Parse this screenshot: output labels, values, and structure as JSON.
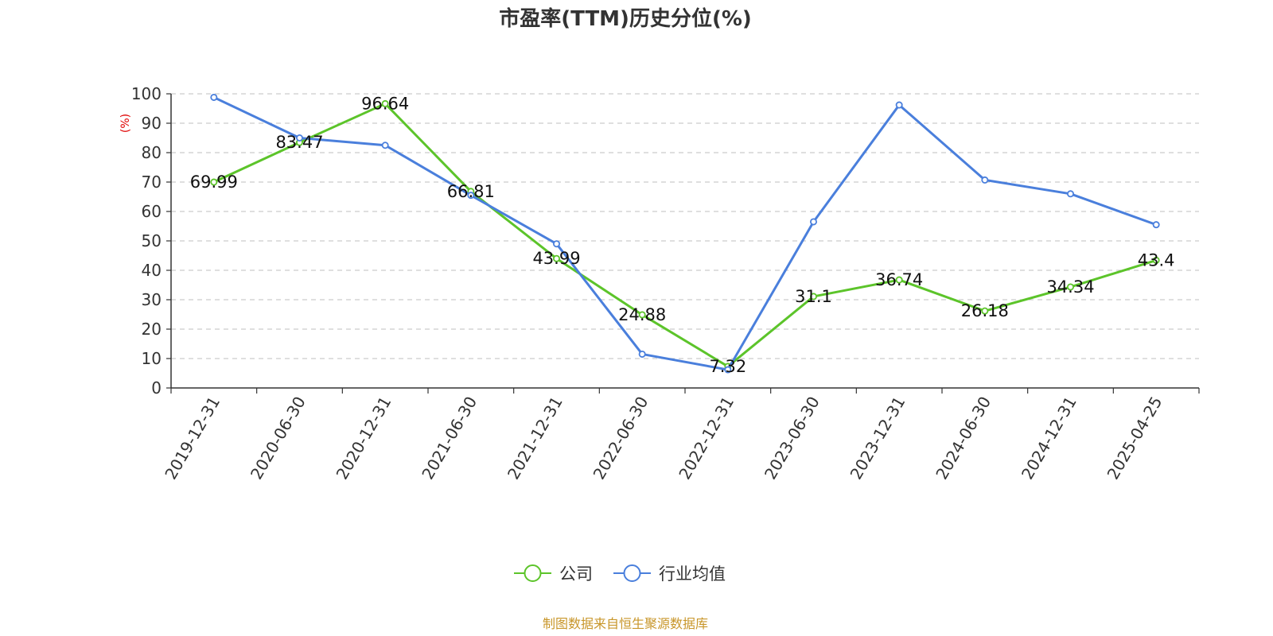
{
  "chart_data": {
    "type": "line",
    "title": "市盈率(TTM)历史分位(%)",
    "ylabel": "(%)",
    "ylim": [
      0,
      100
    ],
    "yticks": [
      0,
      10,
      20,
      30,
      40,
      50,
      60,
      70,
      80,
      90,
      100
    ],
    "grid": true,
    "legend_position": "bottom",
    "categories": [
      "2019-12-31",
      "2020-06-30",
      "2020-12-31",
      "2021-06-30",
      "2021-12-31",
      "2022-06-30",
      "2022-12-31",
      "2023-06-30",
      "2023-12-31",
      "2024-06-30",
      "2024-12-31",
      "2025-04-25"
    ],
    "series": [
      {
        "name": "公司",
        "color": "#5cc42a",
        "values": [
          69.99,
          83.47,
          96.64,
          66.81,
          43.99,
          24.88,
          7.32,
          31.1,
          36.74,
          26.18,
          34.34,
          43.4
        ],
        "labels": [
          "69.99",
          "83.47",
          "96.64",
          "66.81",
          "43.99",
          "24.88",
          "7.32",
          "31.1",
          "36.74",
          "26.18",
          "34.34",
          "43.4"
        ]
      },
      {
        "name": "行业均值",
        "color": "#4a7fdc",
        "values": [
          98.8,
          85.0,
          82.5,
          65.5,
          49.0,
          11.5,
          6.2,
          56.5,
          96.2,
          70.7,
          66.0,
          55.5
        ]
      }
    ],
    "source": "制图数据来自恒生聚源数据库"
  }
}
